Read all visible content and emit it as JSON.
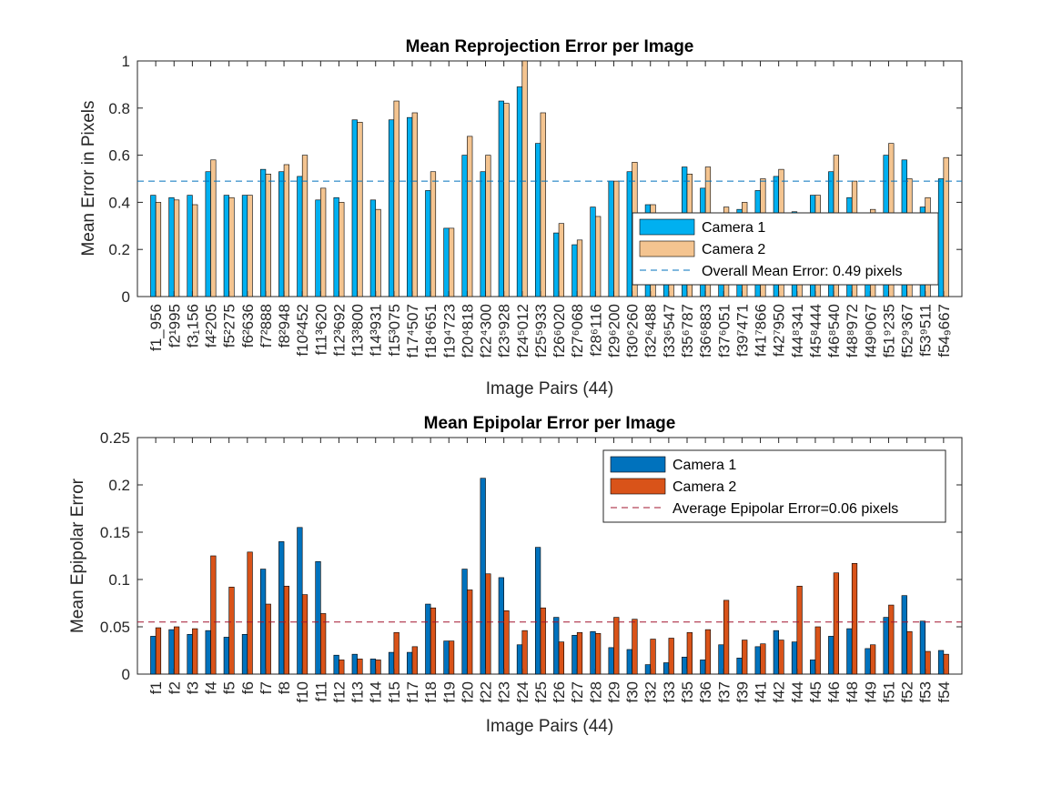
{
  "chart_data": [
    {
      "type": "bar",
      "title": "Mean Reprojection Error per Image",
      "xlabel": "Image Pairs (44)",
      "ylabel": "Mean Error in Pixels",
      "ylim": [
        0,
        1
      ],
      "yticks": [
        "0",
        "0.2",
        "0.4",
        "0.6",
        "0.8",
        "1"
      ],
      "grid": false,
      "legend_position": "lower-right",
      "categories": [
        "f1_956",
        "f2_1995",
        "f3_1156",
        "f4_2205",
        "f5_2275",
        "f6_2636",
        "f7_2888",
        "f8_2948",
        "f10_2452",
        "f11_3620",
        "f12_3692",
        "f13_3800",
        "f14_3931",
        "f15_3075",
        "f17_4507",
        "f18_4651",
        "f19_4723",
        "f20_4818",
        "f22_4300",
        "f23_5928",
        "f24_5012",
        "f25_5933",
        "f26_6020",
        "f27_6068",
        "f28_6116",
        "f29_6200",
        "f30_6260",
        "f32_6488",
        "f33_6547",
        "f35_6787",
        "f36_6883",
        "f37_6051",
        "f39_7471",
        "f41_7866",
        "f42_7950",
        "f44_8341",
        "f45_8444",
        "f46_8540",
        "f48_8972",
        "f49_8067",
        "f51_9235",
        "f52_9367",
        "f53_9511",
        "f54_9667"
      ],
      "categories_display": [
        "f1_956",
        "f2¹995",
        "f3₁156",
        "f4²205",
        "f5²275",
        "f6²636",
        "f7²888",
        "f8²948",
        "f10²452",
        "f11³620",
        "f12³692",
        "f13³800",
        "f14³931",
        "f15³075",
        "f17⁴507",
        "f18⁴651",
        "f19⁴723",
        "f20⁴818",
        "f22⁴300",
        "f23⁵928",
        "f24⁵012",
        "f25⁵933",
        "f26⁶020",
        "f27⁶068",
        "f28⁶116",
        "f29⁶200",
        "f30⁶260",
        "f32⁶488",
        "f33⁶547",
        "f35⁶787",
        "f36⁶883",
        "f37⁶051",
        "f39⁷471",
        "f41⁷866",
        "f42⁷950",
        "f44⁸341",
        "f45⁸444",
        "f46⁸540",
        "f48⁸972",
        "f49⁸067",
        "f51⁹235",
        "f52⁹367",
        "f53⁹511",
        "f54₉667"
      ],
      "series": [
        {
          "name": "Camera 1",
          "color": "#00B0F0",
          "values": [
            0.43,
            0.42,
            0.43,
            0.53,
            0.43,
            0.43,
            0.54,
            0.53,
            0.51,
            0.41,
            0.42,
            0.75,
            0.41,
            0.75,
            0.76,
            0.45,
            0.29,
            0.6,
            0.53,
            0.83,
            0.89,
            0.65,
            0.27,
            0.22,
            0.38,
            0.49,
            0.53,
            0.39,
            0.35,
            0.55,
            0.46,
            0.33,
            0.37,
            0.45,
            0.51,
            0.36,
            0.43,
            0.53,
            0.42,
            0.3,
            0.6,
            0.58,
            0.38,
            0.5
          ]
        },
        {
          "name": "Camera 2",
          "color": "#F4C490",
          "values": [
            0.4,
            0.41,
            0.39,
            0.58,
            0.42,
            0.43,
            0.52,
            0.56,
            0.6,
            0.46,
            0.4,
            0.74,
            0.37,
            0.83,
            0.78,
            0.53,
            0.29,
            0.68,
            0.6,
            0.82,
            1.0,
            0.78,
            0.31,
            0.24,
            0.34,
            0.49,
            0.57,
            0.39,
            0.3,
            0.52,
            0.55,
            0.38,
            0.4,
            0.5,
            0.54,
            0.32,
            0.43,
            0.6,
            0.49,
            0.37,
            0.65,
            0.5,
            0.42,
            0.59
          ]
        }
      ],
      "reference_line": {
        "label": "Overall Mean Error: 0.49 pixels",
        "value": 0.49,
        "color": "#0072BD",
        "style": "dashed"
      }
    },
    {
      "type": "bar",
      "title": "Mean Epipolar Error per Image",
      "xlabel": "Image Pairs (44)",
      "ylabel": "Mean Epipolar Error",
      "ylim": [
        0,
        0.25
      ],
      "yticks": [
        "0",
        "0.05",
        "0.1",
        "0.15",
        "0.2",
        "0.25"
      ],
      "grid": false,
      "legend_position": "top-right",
      "categories": [
        "f1",
        "f2",
        "f3",
        "f4",
        "f5",
        "f6",
        "f7",
        "f8",
        "f10",
        "f11",
        "f12",
        "f13",
        "f14",
        "f15",
        "f17",
        "f18",
        "f19",
        "f20",
        "f22",
        "f23",
        "f24",
        "f25",
        "f26",
        "f27",
        "f28",
        "f29",
        "f30",
        "f32",
        "f33",
        "f35",
        "f36",
        "f37",
        "f39",
        "f41",
        "f42",
        "f44",
        "f45",
        "f46",
        "f48",
        "f49",
        "f51",
        "f52",
        "f53",
        "f54"
      ],
      "series": [
        {
          "name": "Camera 1",
          "color": "#0072BD",
          "values": [
            0.04,
            0.047,
            0.042,
            0.046,
            0.039,
            0.042,
            0.111,
            0.14,
            0.155,
            0.119,
            0.02,
            0.021,
            0.016,
            0.023,
            0.023,
            0.074,
            0.035,
            0.111,
            0.207,
            0.102,
            0.031,
            0.134,
            0.06,
            0.041,
            0.045,
            0.028,
            0.026,
            0.01,
            0.012,
            0.018,
            0.015,
            0.031,
            0.017,
            0.029,
            0.046,
            0.034,
            0.015,
            0.04,
            0.048,
            0.027,
            0.06,
            0.083,
            0.056,
            0.025
          ]
        },
        {
          "name": "Camera 2",
          "color": "#D95319",
          "values": [
            0.049,
            0.05,
            0.048,
            0.125,
            0.092,
            0.129,
            0.074,
            0.093,
            0.084,
            0.064,
            0.015,
            0.016,
            0.015,
            0.044,
            0.029,
            0.07,
            0.035,
            0.089,
            0.106,
            0.067,
            0.046,
            0.07,
            0.034,
            0.044,
            0.043,
            0.06,
            0.058,
            0.037,
            0.038,
            0.044,
            0.047,
            0.078,
            0.036,
            0.032,
            0.036,
            0.093,
            0.05,
            0.107,
            0.117,
            0.031,
            0.073,
            0.045,
            0.024,
            0.021
          ]
        }
      ],
      "reference_line": {
        "label": "Average Epipolar Error=0.06 pixels",
        "value": 0.055,
        "color": "#A2142F",
        "style": "dashed"
      }
    }
  ]
}
